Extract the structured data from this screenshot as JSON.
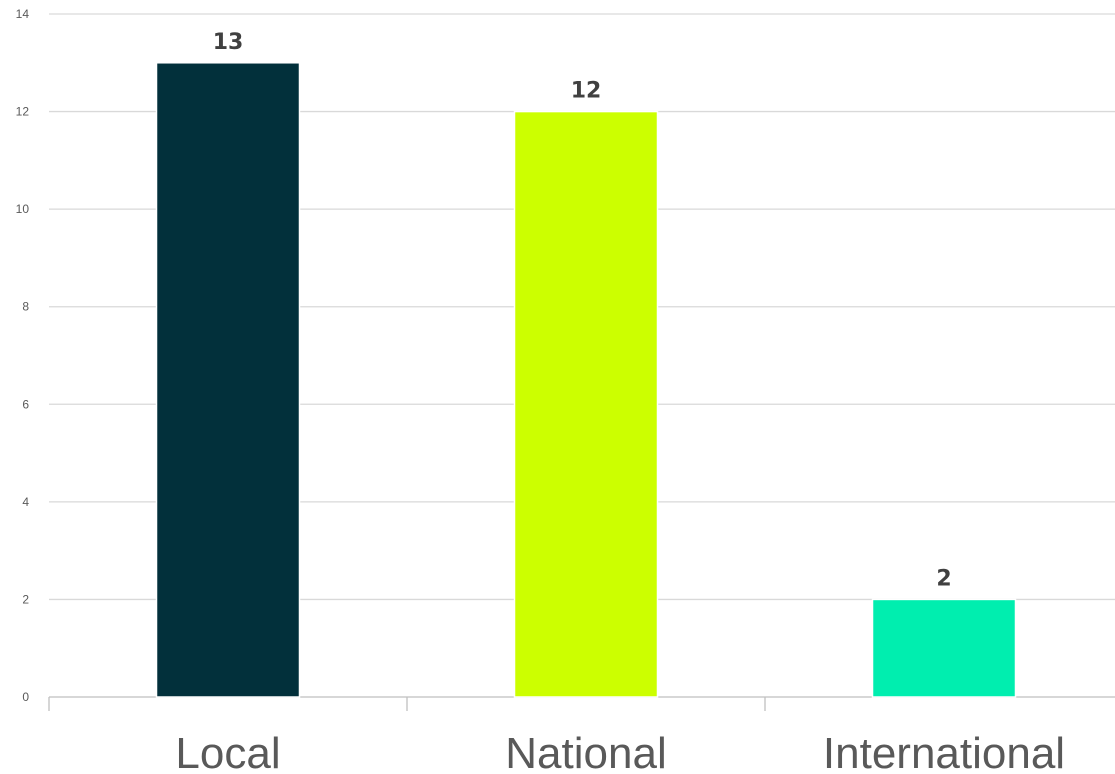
{
  "chart_data": {
    "type": "bar",
    "categories": [
      "Local",
      "National",
      "International"
    ],
    "values": [
      13,
      12,
      2
    ],
    "data_labels": [
      "13",
      "12",
      "2"
    ],
    "colors": [
      "#02303b",
      "#ccff00",
      "#00eeaf"
    ],
    "title": "",
    "xlabel": "",
    "ylabel": "",
    "ylim": [
      0,
      14
    ],
    "yticks": [
      0,
      2,
      4,
      6,
      8,
      10,
      12,
      14
    ],
    "ytick_labels": [
      "0",
      "2",
      "4",
      "6",
      "8",
      "10",
      "12",
      "14"
    ],
    "grid": true,
    "legend": "none"
  }
}
